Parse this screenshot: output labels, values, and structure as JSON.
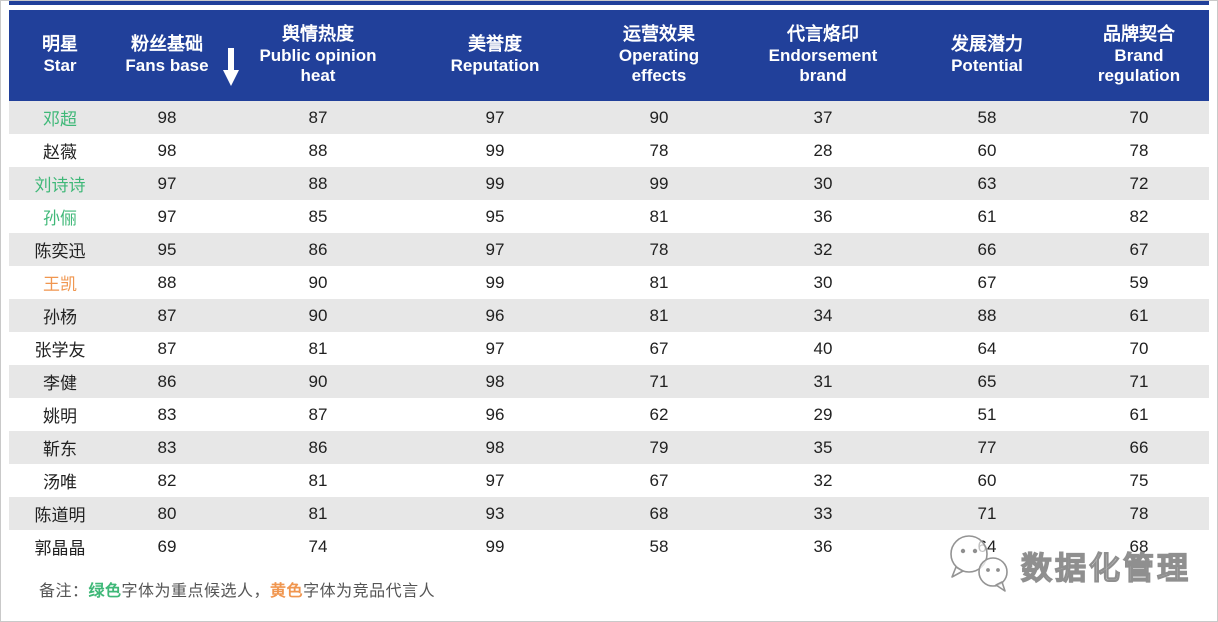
{
  "chart_data": {
    "type": "table",
    "sort_column": "粉丝基础 Fans base",
    "sort_direction": "descending",
    "columns": [
      {
        "zh": "明星",
        "en": "Star",
        "sorted": false
      },
      {
        "zh": "粉丝基础",
        "en": "Fans base",
        "sorted": true
      },
      {
        "zh": "舆情热度",
        "en": "Public opinion\nheat",
        "sorted": false
      },
      {
        "zh": "美誉度",
        "en": "Reputation",
        "sorted": false
      },
      {
        "zh": "运营效果",
        "en": "Operating\neffects",
        "sorted": false
      },
      {
        "zh": "代言烙印",
        "en": "Endorsement\nbrand",
        "sorted": false
      },
      {
        "zh": "发展潜力",
        "en": "Potential",
        "sorted": false
      },
      {
        "zh": "品牌契合",
        "en": "Brand\nregulation",
        "sorted": false
      }
    ],
    "rows": [
      {
        "name": "邓超",
        "type": "candidate",
        "values": [
          98,
          87,
          97,
          90,
          37,
          58,
          70
        ]
      },
      {
        "name": "赵薇",
        "type": "normal",
        "values": [
          98,
          88,
          99,
          78,
          28,
          60,
          78
        ]
      },
      {
        "name": "刘诗诗",
        "type": "candidate",
        "values": [
          97,
          88,
          99,
          99,
          30,
          63,
          72
        ]
      },
      {
        "name": "孙俪",
        "type": "candidate",
        "values": [
          97,
          85,
          95,
          81,
          36,
          61,
          82
        ]
      },
      {
        "name": "陈奕迅",
        "type": "normal",
        "values": [
          95,
          86,
          97,
          78,
          32,
          66,
          67
        ]
      },
      {
        "name": "王凯",
        "type": "competitor",
        "values": [
          88,
          90,
          99,
          81,
          30,
          67,
          59
        ]
      },
      {
        "name": "孙杨",
        "type": "normal",
        "values": [
          87,
          90,
          96,
          81,
          34,
          88,
          61
        ]
      },
      {
        "name": "张学友",
        "type": "normal",
        "values": [
          87,
          81,
          97,
          67,
          40,
          64,
          70
        ]
      },
      {
        "name": "李健",
        "type": "normal",
        "values": [
          86,
          90,
          98,
          71,
          31,
          65,
          71
        ]
      },
      {
        "name": "姚明",
        "type": "normal",
        "values": [
          83,
          87,
          96,
          62,
          29,
          51,
          61
        ]
      },
      {
        "name": "靳东",
        "type": "normal",
        "values": [
          83,
          86,
          98,
          79,
          35,
          77,
          66
        ]
      },
      {
        "name": "汤唯",
        "type": "normal",
        "values": [
          82,
          81,
          97,
          67,
          32,
          60,
          75
        ]
      },
      {
        "name": "陈道明",
        "type": "normal",
        "values": [
          80,
          81,
          93,
          68,
          33,
          71,
          78
        ]
      },
      {
        "name": "郭晶晶",
        "type": "normal",
        "values": [
          69,
          74,
          99,
          58,
          36,
          64,
          68
        ]
      }
    ]
  },
  "note": {
    "prefix": "备注：",
    "green_word": "绿色",
    "middle": "字体为重点候选人，",
    "orange_word": "黄色",
    "suffix": "字体为竞品代言人"
  },
  "watermark": {
    "text": "数据化管理",
    "logo": "wechat-bubbles-icon"
  },
  "colors": {
    "header_bg": "#21409A",
    "row_alt": "#E7E7E7",
    "text_dark": "#212121",
    "candidate_green": "#3FB878",
    "competitor_orange": "#F0964F",
    "note_gray": "#555555",
    "border_gray": "#C9C9C9"
  }
}
